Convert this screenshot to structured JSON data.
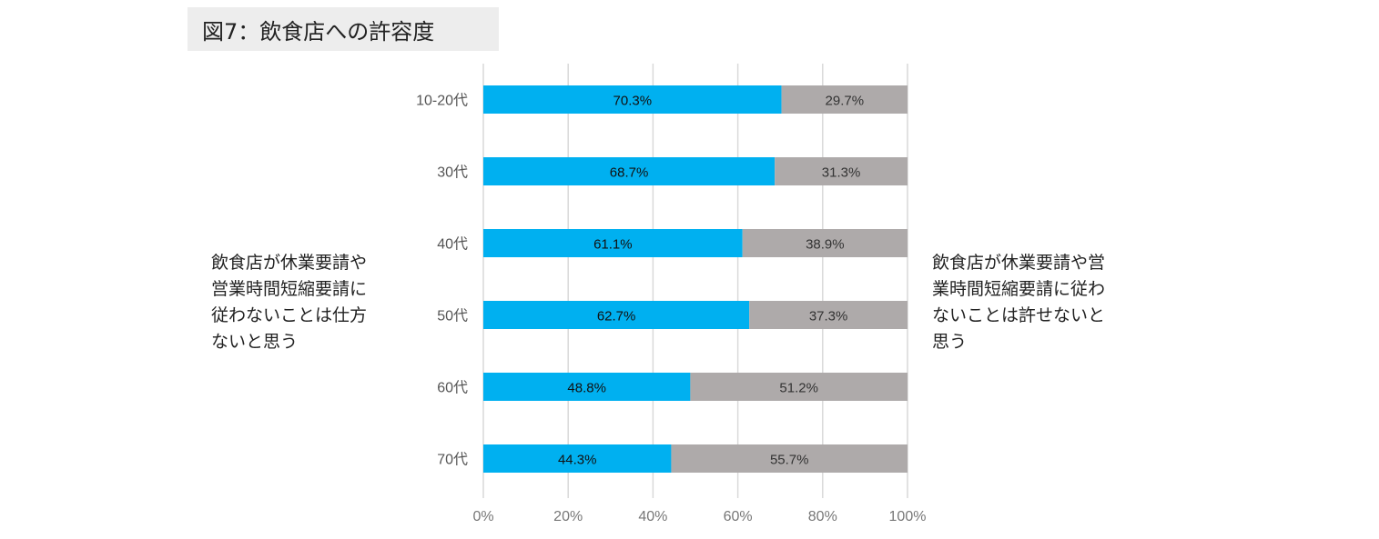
{
  "title": "図7：飲食店への許容度",
  "left_annotation": "飲食店が休業要請や\n営業時間短縮要請に\n従わないことは仕方\nないと思う",
  "right_annotation": "飲食店が休業要請や営\n業時間短縮要請に従わ\nないことは許せないと\n思う",
  "chart_data": {
    "type": "bar",
    "orientation": "horizontal",
    "stacked": true,
    "categories": [
      "10-20代",
      "30代",
      "40代",
      "50代",
      "60代",
      "70代"
    ],
    "series": [
      {
        "values": [
          70.3,
          68.7,
          61.1,
          62.7,
          48.8,
          44.3
        ],
        "color": "#00b0f0",
        "label_color": "#111111"
      },
      {
        "values": [
          29.7,
          31.3,
          38.9,
          37.3,
          51.2,
          55.7
        ],
        "color": "#aeaaaa",
        "label_color": "#333333"
      }
    ],
    "value_format": "{v}%",
    "xlim": [
      0,
      100
    ],
    "xticks": [
      "0%",
      "20%",
      "40%",
      "60%",
      "80%",
      "100%"
    ],
    "grid": true,
    "legend": "none"
  }
}
